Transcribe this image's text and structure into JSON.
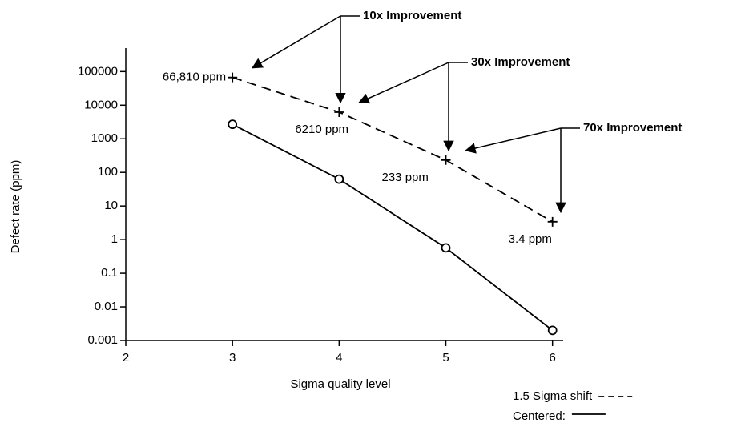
{
  "chart_data": {
    "type": "line",
    "x_label": "Sigma quality level",
    "y_label": "Defect rate (ppm)",
    "x": [
      3,
      4,
      5,
      6
    ],
    "series": [
      {
        "name": "1.5 Sigma shift",
        "color": "#000000",
        "dash": "dashed",
        "marker": "plus",
        "values": [
          66810,
          6210,
          233,
          3.4
        ],
        "value_labels": [
          "66,810 ppm",
          "6210 ppm",
          "233 ppm",
          "3.4 ppm"
        ]
      },
      {
        "name": "Centered:",
        "color": "#000000",
        "dash": "solid",
        "marker": "circle",
        "values": [
          2700,
          63,
          0.57,
          0.002
        ]
      }
    ],
    "annotations": [
      {
        "text": "10x Improvement"
      },
      {
        "text": "30x Improvement"
      },
      {
        "text": "70x Improvement"
      }
    ],
    "xlim": [
      2,
      6.1
    ],
    "xticks": [
      2,
      3,
      4,
      5,
      6
    ],
    "ylim": [
      0.001,
      500000
    ],
    "yticks": [
      0.001,
      0.01,
      0.1,
      1,
      10,
      100,
      1000,
      10000,
      100000
    ],
    "log_y": true,
    "grid": false,
    "legend": "bottom-right"
  }
}
